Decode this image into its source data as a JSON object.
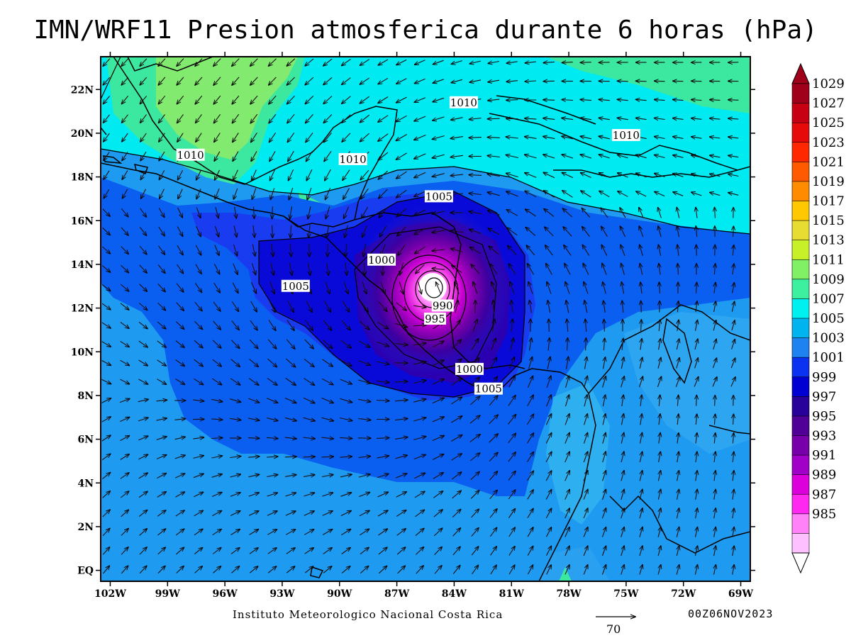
{
  "title": "IMN/WRF11 Presion atmosferica durante 6 horas (hPa)",
  "credit": "Instituto Meteorologico Nacional Costa Rica",
  "timestamp": "00Z06NOV2023",
  "vector_scale": {
    "label": "70"
  },
  "map": {
    "lon_range": [
      -102.5,
      -68.5
    ],
    "lat_range": [
      -0.5,
      23.5
    ],
    "lon_ticks": [
      "102W",
      "99W",
      "96W",
      "93W",
      "90W",
      "87W",
      "84W",
      "81W",
      "78W",
      "75W",
      "72W",
      "69W"
    ],
    "lat_ticks": [
      "EQ",
      "2N",
      "4N",
      "6N",
      "8N",
      "10N",
      "12N",
      "14N",
      "16N",
      "18N",
      "20N",
      "22N"
    ],
    "low_center": {
      "lon": -85.3,
      "lat": 12.9
    },
    "contour_labels": [
      {
        "text": "1010",
        "lon": -83.5,
        "lat": 21.4
      },
      {
        "text": "1010",
        "lon": -75.0,
        "lat": 19.9
      },
      {
        "text": "1010",
        "lon": -97.8,
        "lat": 19.0
      },
      {
        "text": "1010",
        "lon": -89.3,
        "lat": 18.8
      },
      {
        "text": "1005",
        "lon": -84.8,
        "lat": 17.1
      },
      {
        "text": "1000",
        "lon": -87.8,
        "lat": 14.2
      },
      {
        "text": "1005",
        "lon": -92.3,
        "lat": 13.0
      },
      {
        "text": "990",
        "lon": -84.6,
        "lat": 12.1
      },
      {
        "text": "995",
        "lon": -85.0,
        "lat": 11.5
      },
      {
        "text": "1000",
        "lon": -83.2,
        "lat": 9.2
      },
      {
        "text": "1005",
        "lon": -82.2,
        "lat": 8.3
      }
    ]
  },
  "colorbar": {
    "labels": [
      "1029",
      "1027",
      "1025",
      "1023",
      "1021",
      "1019",
      "1017",
      "1015",
      "1013",
      "1011",
      "1009",
      "1007",
      "1005",
      "1003",
      "1001",
      "999",
      "997",
      "995",
      "993",
      "991",
      "989",
      "987",
      "985"
    ],
    "colors": [
      "#a0001a",
      "#c80014",
      "#e60a0a",
      "#ff2800",
      "#ff5a00",
      "#ff8c00",
      "#ffc800",
      "#e6dc32",
      "#c8f028",
      "#82f064",
      "#3cf0a0",
      "#00f0f0",
      "#00b4f0",
      "#1e82f0",
      "#0a32f0",
      "#0000d2",
      "#28009a",
      "#500096",
      "#7800aa",
      "#a000c8",
      "#dc00dc",
      "#ff28f0",
      "#ff82f8",
      "#ffc0ff"
    ]
  }
}
